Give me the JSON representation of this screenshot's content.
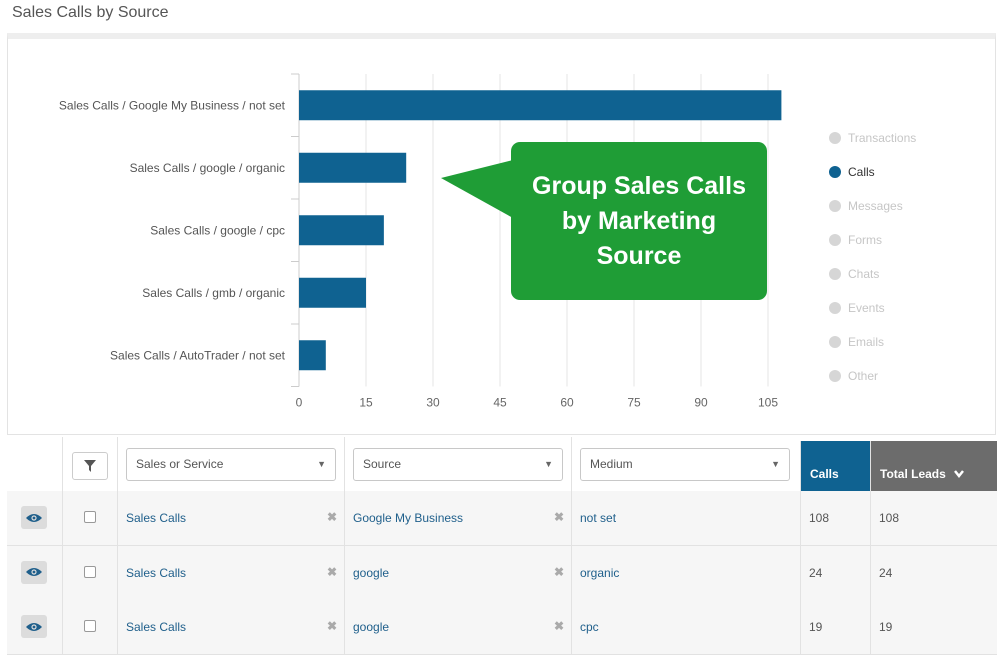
{
  "page": {
    "title": "Sales Calls by Source"
  },
  "chart_data": {
    "type": "bar",
    "orientation": "horizontal",
    "categories": [
      "Sales Calls / Google My Business / not set",
      "Sales Calls / google / organic",
      "Sales Calls / google / cpc",
      "Sales Calls / gmb / organic",
      "Sales Calls / AutoTrader / not set"
    ],
    "values": [
      108,
      24,
      19,
      15,
      6
    ],
    "x_ticks": [
      "0",
      "15",
      "30",
      "45",
      "60",
      "75",
      "90",
      "105"
    ],
    "xlim": [
      0,
      108
    ],
    "grid": true,
    "bar_color": "#0f6291",
    "legend_placement": "right"
  },
  "callout": {
    "text": "Group Sales Calls by Marketing Source",
    "color": "#1f9d36"
  },
  "legend": {
    "items": [
      {
        "label": "Transactions",
        "active": false
      },
      {
        "label": "Calls",
        "active": true
      },
      {
        "label": "Messages",
        "active": false
      },
      {
        "label": "Forms",
        "active": false
      },
      {
        "label": "Chats",
        "active": false
      },
      {
        "label": "Events",
        "active": false
      },
      {
        "label": "Emails",
        "active": false
      },
      {
        "label": "Other",
        "active": false
      }
    ]
  },
  "table": {
    "filters": {
      "sales_or_service": "Sales or Service",
      "source": "Source",
      "medium": "Medium"
    },
    "columns": {
      "calls": "Calls",
      "total_leads": "Total Leads"
    },
    "rows": [
      {
        "type": "Sales Calls",
        "source": "Google My Business",
        "medium": "not set",
        "calls": "108",
        "total_leads": "108"
      },
      {
        "type": "Sales Calls",
        "source": "google",
        "medium": "organic",
        "calls": "24",
        "total_leads": "24"
      },
      {
        "type": "Sales Calls",
        "source": "google",
        "medium": "cpc",
        "calls": "19",
        "total_leads": "19"
      }
    ]
  }
}
